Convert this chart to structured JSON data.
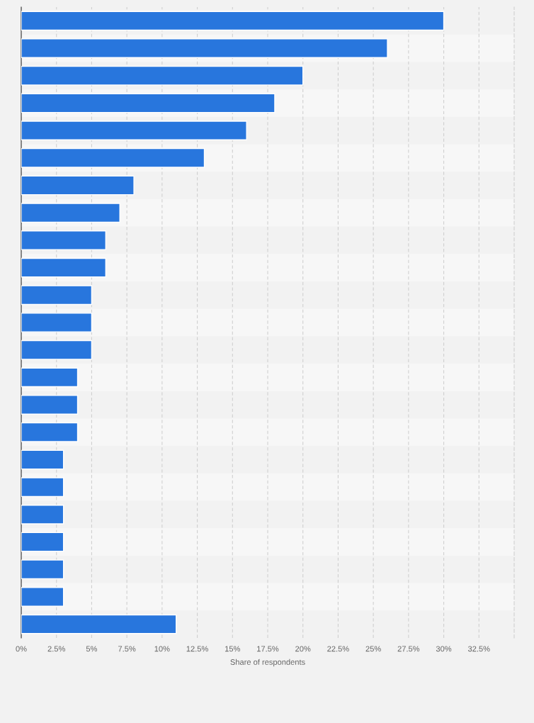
{
  "chart_data": {
    "type": "bar",
    "orientation": "horizontal",
    "xlabel": "Share of respondents",
    "categories": [
      null,
      null,
      null,
      null,
      null,
      null,
      null,
      null,
      null,
      null,
      null,
      null,
      null,
      null,
      null,
      null,
      null,
      null,
      null,
      null,
      null,
      null,
      null
    ],
    "values": [
      30,
      26,
      20,
      18,
      16,
      13,
      8,
      7,
      6,
      6,
      5,
      5,
      5,
      4,
      4,
      4,
      3,
      3,
      3,
      3,
      3,
      3,
      11
    ],
    "color": "#2876dd",
    "xlim": [
      0,
      35
    ],
    "xticks": [
      {
        "value": 0,
        "label": "0%"
      },
      {
        "value": 2.5,
        "label": "2.5%"
      },
      {
        "value": 5,
        "label": "5%"
      },
      {
        "value": 7.5,
        "label": "7.5%"
      },
      {
        "value": 10,
        "label": "10%"
      },
      {
        "value": 12.5,
        "label": "12.5%"
      },
      {
        "value": 15,
        "label": "15%"
      },
      {
        "value": 17.5,
        "label": "17.5%"
      },
      {
        "value": 20,
        "label": "20%"
      },
      {
        "value": 22.5,
        "label": "22.5%"
      },
      {
        "value": 25,
        "label": "25%"
      },
      {
        "value": 27.5,
        "label": "27.5%"
      },
      {
        "value": 30,
        "label": "30%"
      },
      {
        "value": 32.5,
        "label": "32.5%"
      }
    ],
    "grid": "x",
    "tick_labels": "x"
  }
}
